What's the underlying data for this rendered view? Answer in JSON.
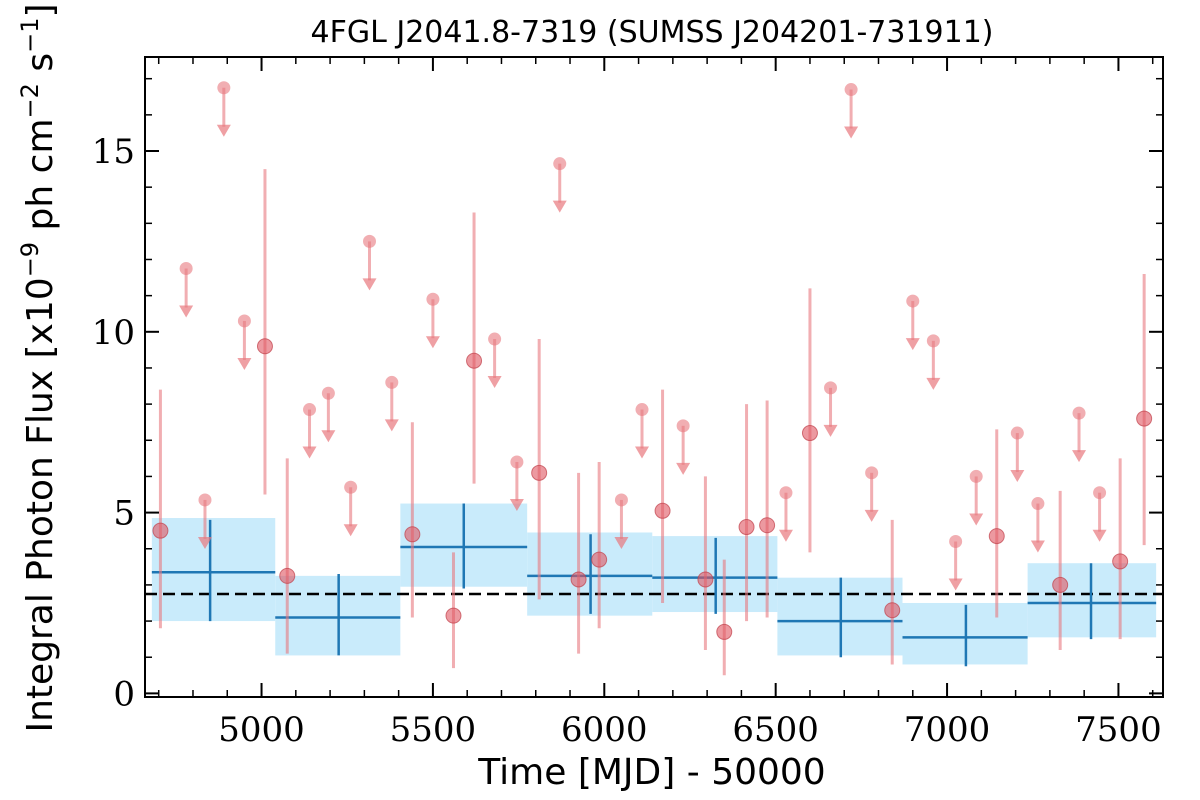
{
  "chart_data": {
    "type": "scatter",
    "title": "4FGL J2041.8-7319 (SUMSS J204201-731911)",
    "xlabel": "Time [MJD] - 50000",
    "ylabel": "Integral Photon Flux [x10$^{-9}$ ph cm$^{-2}$ s$^{-1}$]",
    "ylabel_parts": {
      "prefix": "Integral Photon Flux [x10",
      "exp1": "−9",
      "mid": " ph cm",
      "exp2": "−2",
      "mid2": " s",
      "exp3": "−1",
      "suffix": "]"
    },
    "xlim": [
      4660,
      7630
    ],
    "ylim": [
      -0.1,
      17.6
    ],
    "xticks": [
      5000,
      5500,
      6000,
      6500,
      7000,
      7500
    ],
    "yticks": [
      0,
      5,
      10,
      15
    ],
    "xtick_labels": [
      "5000",
      "5500",
      "6000",
      "6500",
      "7000",
      "7500"
    ],
    "ytick_labels": [
      "0",
      "5",
      "10",
      "15"
    ],
    "grid": false,
    "colors": {
      "points": "#e8787e",
      "bins": "#1f77b4",
      "band": "#c9ebfb",
      "mean_line": "#000000"
    },
    "mean_flux": 2.75,
    "series": [
      {
        "kind": "detections",
        "points": [
          {
            "x": 4705,
            "y": 4.5,
            "ylo": 1.8,
            "yhi": 8.4
          },
          {
            "x": 5010,
            "y": 9.6,
            "ylo": 5.5,
            "yhi": 14.5
          },
          {
            "x": 5075,
            "y": 3.25,
            "ylo": 1.1,
            "yhi": 6.5
          },
          {
            "x": 5440,
            "y": 4.4,
            "ylo": 2.1,
            "yhi": 7.5
          },
          {
            "x": 5560,
            "y": 2.15,
            "ylo": 0.7,
            "yhi": 3.9
          },
          {
            "x": 5620,
            "y": 9.2,
            "ylo": 5.8,
            "yhi": 13.3
          },
          {
            "x": 5810,
            "y": 6.1,
            "ylo": 2.6,
            "yhi": 9.8
          },
          {
            "x": 5925,
            "y": 3.15,
            "ylo": 1.1,
            "yhi": 6.1
          },
          {
            "x": 5985,
            "y": 3.7,
            "ylo": 1.8,
            "yhi": 6.4
          },
          {
            "x": 6170,
            "y": 5.05,
            "ylo": 2.5,
            "yhi": 8.4
          },
          {
            "x": 6295,
            "y": 3.15,
            "ylo": 1.2,
            "yhi": 6.0
          },
          {
            "x": 6350,
            "y": 1.7,
            "ylo": 0.5,
            "yhi": 3.7
          },
          {
            "x": 6415,
            "y": 4.6,
            "ylo": 2.0,
            "yhi": 8.0
          },
          {
            "x": 6475,
            "y": 4.65,
            "ylo": 2.1,
            "yhi": 8.1
          },
          {
            "x": 6600,
            "y": 7.2,
            "ylo": 3.9,
            "yhi": 11.2
          },
          {
            "x": 6840,
            "y": 2.3,
            "ylo": 0.8,
            "yhi": 4.8
          },
          {
            "x": 7145,
            "y": 4.35,
            "ylo": 2.1,
            "yhi": 7.3
          },
          {
            "x": 7330,
            "y": 3.0,
            "ylo": 1.2,
            "yhi": 5.6
          },
          {
            "x": 7505,
            "y": 3.65,
            "ylo": 1.5,
            "yhi": 6.5
          },
          {
            "x": 7575,
            "y": 7.6,
            "ylo": 4.1,
            "yhi": 11.6
          }
        ]
      },
      {
        "kind": "upper_limits",
        "points": [
          {
            "x": 4780,
            "y": 11.75
          },
          {
            "x": 4835,
            "y": 5.35
          },
          {
            "x": 4890,
            "y": 16.75
          },
          {
            "x": 4950,
            "y": 10.3
          },
          {
            "x": 5140,
            "y": 7.85
          },
          {
            "x": 5195,
            "y": 8.3
          },
          {
            "x": 5260,
            "y": 5.7
          },
          {
            "x": 5315,
            "y": 12.5
          },
          {
            "x": 5380,
            "y": 8.6
          },
          {
            "x": 5500,
            "y": 10.9
          },
          {
            "x": 5680,
            "y": 9.8
          },
          {
            "x": 5745,
            "y": 6.4
          },
          {
            "x": 5870,
            "y": 14.65
          },
          {
            "x": 6050,
            "y": 5.35
          },
          {
            "x": 6110,
            "y": 7.85
          },
          {
            "x": 6230,
            "y": 7.4
          },
          {
            "x": 6530,
            "y": 5.55
          },
          {
            "x": 6660,
            "y": 8.45
          },
          {
            "x": 6720,
            "y": 16.7
          },
          {
            "x": 6780,
            "y": 6.1
          },
          {
            "x": 6900,
            "y": 10.85
          },
          {
            "x": 6960,
            "y": 9.75
          },
          {
            "x": 7025,
            "y": 4.2
          },
          {
            "x": 7085,
            "y": 6.0
          },
          {
            "x": 7205,
            "y": 7.2
          },
          {
            "x": 7265,
            "y": 5.25
          },
          {
            "x": 7385,
            "y": 7.75
          },
          {
            "x": 7445,
            "y": 5.55
          }
        ]
      },
      {
        "kind": "bins",
        "bins": [
          {
            "x0": 4680,
            "x1": 5040,
            "x": 4850,
            "y": 3.35,
            "ylo": 2.0,
            "yhi": 4.8,
            "band_lo": 2.0,
            "band_hi": 4.85
          },
          {
            "x0": 5040,
            "x1": 5405,
            "x": 5225,
            "y": 2.1,
            "ylo": 1.05,
            "yhi": 3.3,
            "band_lo": 1.05,
            "band_hi": 3.25
          },
          {
            "x0": 5405,
            "x1": 5775,
            "x": 5590,
            "y": 4.05,
            "ylo": 2.9,
            "yhi": 5.25,
            "band_lo": 2.95,
            "band_hi": 5.25
          },
          {
            "x0": 5775,
            "x1": 6140,
            "x": 5960,
            "y": 3.25,
            "ylo": 2.2,
            "yhi": 4.4,
            "band_lo": 2.15,
            "band_hi": 4.45
          },
          {
            "x0": 6140,
            "x1": 6505,
            "x": 6325,
            "y": 3.2,
            "ylo": 2.2,
            "yhi": 4.3,
            "band_lo": 2.25,
            "band_hi": 4.35
          },
          {
            "x0": 6505,
            "x1": 6870,
            "x": 6690,
            "y": 2.0,
            "ylo": 1.0,
            "yhi": 3.2,
            "band_lo": 1.05,
            "band_hi": 3.2
          },
          {
            "x0": 6870,
            "x1": 7235,
            "x": 7055,
            "y": 1.55,
            "ylo": 0.75,
            "yhi": 2.45,
            "band_lo": 0.8,
            "band_hi": 2.5
          },
          {
            "x0": 7235,
            "x1": 7610,
            "x": 7420,
            "y": 2.5,
            "ylo": 1.5,
            "yhi": 3.6,
            "band_lo": 1.55,
            "band_hi": 3.6
          }
        ]
      }
    ]
  }
}
